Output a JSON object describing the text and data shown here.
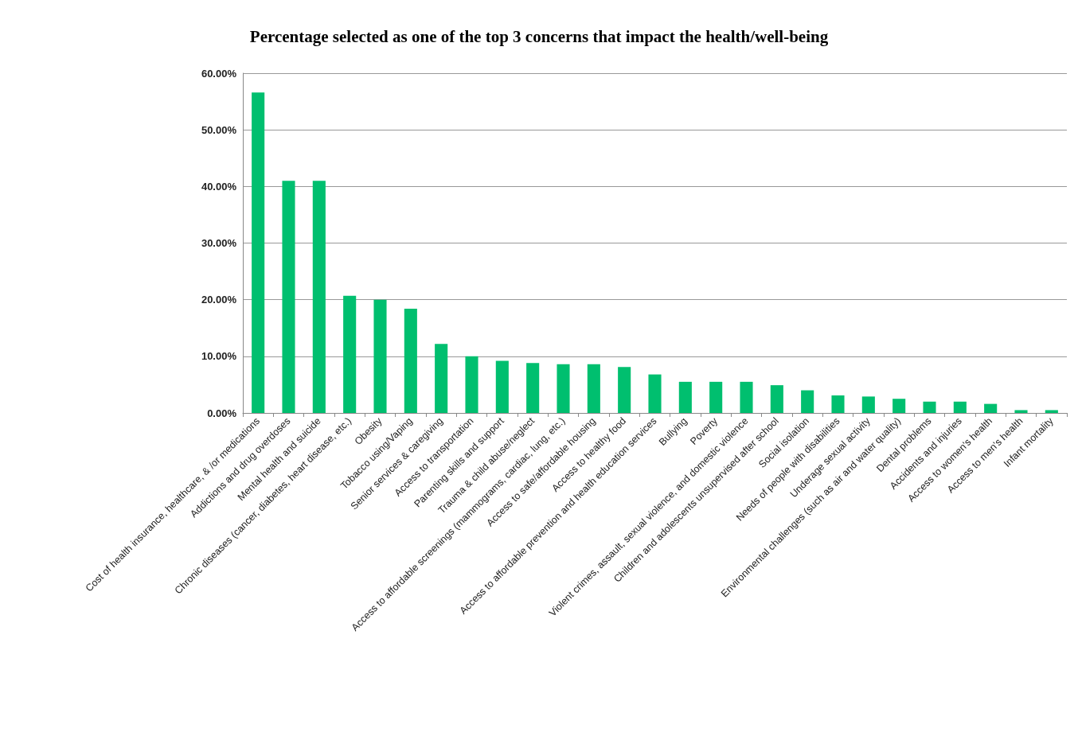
{
  "chart_data": {
    "type": "bar",
    "title": "Percentage selected as one of the top 3 concerns that impact the health/well-being",
    "categories": [
      "Cost of health insurance, healthcare, & /or medications",
      "Addictions and drug overdoses",
      "Mental health and suicide",
      "Chronic diseases (cancer, diabetes, heart disease, etc.)",
      "Obesity",
      "Tobacco using/Vaping",
      "Senior services & caregiving",
      "Access to transportation",
      "Parenting skills and support",
      "Trauma & child abuse/neglect",
      "Access to affordable screenings (mammograms, cardiac, lung, etc.)",
      "Access to safe/affordable housing",
      "Access to healthy food",
      "Access to affordable prevention and health education services",
      "Bullying",
      "Poverty",
      "Violent crimes, assault, sexual violence, and domestic violence",
      "Children and adolescents unsupervised after school",
      "Social isolation",
      "Needs of people with disabilities",
      "Underage sexual activity",
      "Environmental challenges (such as air and water quality)",
      "Dental problems",
      "Accidents and injuries",
      "Access to women's health",
      "Access to men's health",
      "Infant mortality"
    ],
    "values": [
      56.6,
      41.0,
      41.0,
      20.7,
      20.0,
      18.4,
      12.2,
      10.0,
      9.2,
      8.8,
      8.6,
      8.6,
      8.1,
      6.8,
      5.5,
      5.5,
      5.5,
      4.9,
      4.0,
      3.1,
      2.9,
      2.5,
      2.0,
      2.0,
      1.6,
      0.5,
      0.5
    ],
    "color": "#00bf6f",
    "ylim": [
      0,
      60
    ],
    "yticks": [
      {
        "value": 0,
        "label": "0.00%"
      },
      {
        "value": 10,
        "label": "10.00%"
      },
      {
        "value": 20,
        "label": "20.00%"
      },
      {
        "value": 30,
        "label": "30.00%"
      },
      {
        "value": 40,
        "label": "40.00%"
      },
      {
        "value": 50,
        "label": "50.00%"
      },
      {
        "value": 60,
        "label": "60.00%"
      }
    ],
    "grid": "y"
  }
}
